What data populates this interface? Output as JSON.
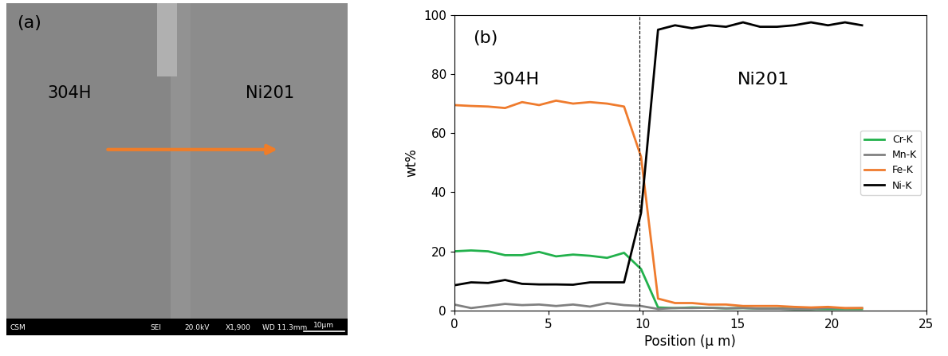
{
  "image_panel": {
    "label": "(a)",
    "regions": [
      "304H",
      "Ni201"
    ],
    "footer": {
      "texts": [
        "CSM",
        "SEI",
        "20.0kV",
        "X1,900",
        "WD 11.3mm"
      ],
      "scale_bar": "10μm"
    }
  },
  "chart_data": {
    "type": "line",
    "panel_label": "(b)",
    "xlabel": "Position (μ m)",
    "ylabel": "wt%",
    "x": [
      0,
      0.9,
      1.8,
      2.7,
      3.6,
      4.5,
      5.4,
      6.3,
      7.2,
      8.1,
      9.0,
      9.9,
      10.8,
      11.7,
      12.6,
      13.5,
      14.4,
      15.3,
      16.2,
      17.1,
      18.0,
      18.9,
      19.8,
      20.7,
      21.6
    ],
    "series": [
      {
        "name": "Cr-K",
        "color": "#22b14c",
        "values": [
          20,
          20.3,
          20,
          18.7,
          18.7,
          19.8,
          18.3,
          18.9,
          18.5,
          17.8,
          19.5,
          14,
          1,
          0.8,
          1,
          0.9,
          0.7,
          0.8,
          0.6,
          0.6,
          0.5,
          0.5,
          0.5,
          0.5,
          0.5
        ]
      },
      {
        "name": "Mn-K",
        "color": "#808080",
        "values": [
          2,
          0.8,
          1.5,
          2.2,
          1.8,
          2,
          1.5,
          2,
          1.3,
          2.5,
          1.8,
          1.5,
          0.5,
          0.8,
          0.8,
          0.9,
          0.7,
          0.8,
          0.6,
          0.6,
          0.5,
          0.5,
          0.8,
          0.7,
          0.8
        ]
      },
      {
        "name": "Fe-K",
        "color": "#ef7b2d",
        "values": [
          69.5,
          69.2,
          69,
          68.5,
          70.5,
          69.5,
          71,
          70,
          70.5,
          70,
          69,
          52,
          4,
          2.5,
          2.5,
          2,
          2,
          1.5,
          1.5,
          1.5,
          1.2,
          1,
          1.2,
          0.8,
          0.8
        ]
      },
      {
        "name": "Ni-K",
        "color": "#000000",
        "values": [
          8.5,
          9.5,
          9.3,
          10.3,
          9,
          8.8,
          8.8,
          8.7,
          9.5,
          9.5,
          9.5,
          33,
          95,
          96.5,
          95.5,
          96.5,
          96,
          97.5,
          96,
          96,
          96.5,
          97.5,
          96.5,
          97.5,
          96.5
        ]
      }
    ],
    "xlim": [
      0,
      25
    ],
    "xticks": [
      0,
      5,
      10,
      15,
      20,
      25
    ],
    "ylim": [
      0,
      100
    ],
    "yticks": [
      0,
      20,
      40,
      60,
      80,
      100
    ],
    "legend": "center right",
    "annotations": [
      "304H",
      "Ni201"
    ],
    "interface_x": 9.8
  }
}
